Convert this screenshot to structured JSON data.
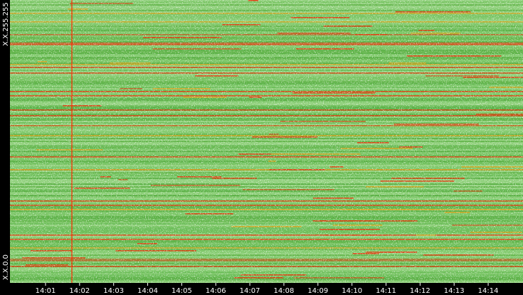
{
  "axis": {
    "y_top": "X.X.255.255",
    "y_bottom": "X.X.0.0",
    "x_labels": [
      "14:01",
      "14:02",
      "14:03",
      "14:04",
      "14:05",
      "14:06",
      "14:07",
      "14:08",
      "14:09",
      "14:10",
      "14:11",
      "14:12",
      "14:13",
      "14:14"
    ]
  }
}
